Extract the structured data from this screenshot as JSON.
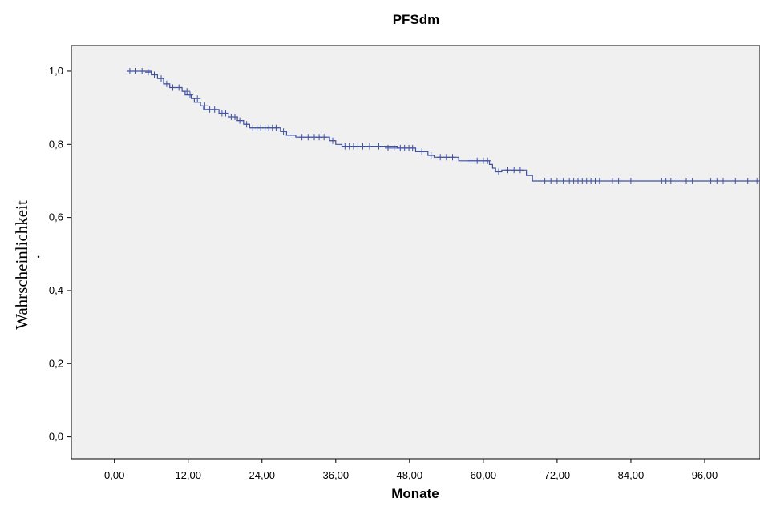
{
  "chart_data": {
    "type": "line",
    "title": "PFSdm",
    "xlabel": "Monate",
    "ylabel": "Wahrscheinlichkeit",
    "ylabel_mark": ".",
    "xlim": [
      -7,
      105
    ],
    "ylim": [
      -0.06,
      1.07
    ],
    "x_ticks": [
      0,
      12,
      24,
      36,
      48,
      60,
      72,
      84,
      96
    ],
    "x_tick_labels": [
      "0,00",
      "12,00",
      "24,00",
      "36,00",
      "48,00",
      "60,00",
      "72,00",
      "84,00",
      "96,00"
    ],
    "y_ticks": [
      0,
      0.2,
      0.4,
      0.6,
      0.8,
      1.0
    ],
    "y_tick_labels": [
      "0,0",
      "0,2",
      "0,4",
      "0,6",
      "0,8",
      "1,0"
    ],
    "grid": false,
    "colors": {
      "plot_bg": "#f0f0f0",
      "line": "#3f51a4"
    },
    "series": [
      {
        "step": [
          [
            2,
            1.0
          ],
          [
            6,
            1.0
          ],
          [
            6,
            0.99
          ],
          [
            7,
            0.99
          ],
          [
            7,
            0.98
          ],
          [
            8,
            0.98
          ],
          [
            8,
            0.965
          ],
          [
            9,
            0.965
          ],
          [
            9,
            0.955
          ],
          [
            11,
            0.955
          ],
          [
            11,
            0.945
          ],
          [
            11.5,
            0.945
          ],
          [
            11.5,
            0.935
          ],
          [
            12.5,
            0.935
          ],
          [
            12.5,
            0.925
          ],
          [
            13,
            0.925
          ],
          [
            13,
            0.915
          ],
          [
            14,
            0.915
          ],
          [
            14,
            0.905
          ],
          [
            14.5,
            0.905
          ],
          [
            14.5,
            0.895
          ],
          [
            17,
            0.895
          ],
          [
            17,
            0.885
          ],
          [
            18.5,
            0.885
          ],
          [
            18.5,
            0.875
          ],
          [
            20,
            0.875
          ],
          [
            20,
            0.865
          ],
          [
            21,
            0.865
          ],
          [
            21,
            0.855
          ],
          [
            22,
            0.855
          ],
          [
            22,
            0.845
          ],
          [
            27,
            0.845
          ],
          [
            27,
            0.835
          ],
          [
            28,
            0.835
          ],
          [
            28,
            0.825
          ],
          [
            29.5,
            0.825
          ],
          [
            29.5,
            0.82
          ],
          [
            35,
            0.82
          ],
          [
            35,
            0.81
          ],
          [
            36,
            0.81
          ],
          [
            36,
            0.8
          ],
          [
            37,
            0.8
          ],
          [
            37,
            0.795
          ],
          [
            46,
            0.795
          ],
          [
            46,
            0.79
          ],
          [
            49,
            0.79
          ],
          [
            49,
            0.78
          ],
          [
            51,
            0.78
          ],
          [
            51,
            0.77
          ],
          [
            52,
            0.77
          ],
          [
            52,
            0.765
          ],
          [
            56,
            0.765
          ],
          [
            56,
            0.755
          ],
          [
            61,
            0.755
          ],
          [
            61,
            0.745
          ],
          [
            61.5,
            0.745
          ],
          [
            61.5,
            0.735
          ],
          [
            62,
            0.735
          ],
          [
            62,
            0.725
          ],
          [
            63,
            0.725
          ],
          [
            63,
            0.73
          ],
          [
            67,
            0.73
          ],
          [
            67,
            0.715
          ],
          [
            68,
            0.715
          ],
          [
            68,
            0.7
          ],
          [
            105,
            0.7
          ]
        ],
        "censored": [
          [
            2.5,
            1.0
          ],
          [
            3.5,
            1.0
          ],
          [
            4.5,
            1.0
          ],
          [
            5.5,
            0.997
          ],
          [
            6.5,
            0.99
          ],
          [
            7.6,
            0.98
          ],
          [
            8.5,
            0.965
          ],
          [
            9.5,
            0.955
          ],
          [
            10.5,
            0.955
          ],
          [
            11.8,
            0.945
          ],
          [
            12.3,
            0.935
          ],
          [
            13.5,
            0.925
          ],
          [
            14.7,
            0.905
          ],
          [
            15.5,
            0.895
          ],
          [
            16.3,
            0.895
          ],
          [
            17.5,
            0.885
          ],
          [
            18.1,
            0.885
          ],
          [
            19,
            0.875
          ],
          [
            19.6,
            0.875
          ],
          [
            20.4,
            0.865
          ],
          [
            21.5,
            0.855
          ],
          [
            22.5,
            0.845
          ],
          [
            23.2,
            0.845
          ],
          [
            23.8,
            0.845
          ],
          [
            24.5,
            0.845
          ],
          [
            25.1,
            0.845
          ],
          [
            25.7,
            0.845
          ],
          [
            26.3,
            0.845
          ],
          [
            27.5,
            0.835
          ],
          [
            28.4,
            0.825
          ],
          [
            30.5,
            0.82
          ],
          [
            31.5,
            0.82
          ],
          [
            32.5,
            0.82
          ],
          [
            33.3,
            0.82
          ],
          [
            34.1,
            0.82
          ],
          [
            35.5,
            0.81
          ],
          [
            37.5,
            0.795
          ],
          [
            38.2,
            0.795
          ],
          [
            38.9,
            0.795
          ],
          [
            39.6,
            0.795
          ],
          [
            40.4,
            0.795
          ],
          [
            41.5,
            0.795
          ],
          [
            43,
            0.795
          ],
          [
            44.5,
            0.79
          ],
          [
            45.5,
            0.79
          ],
          [
            46.5,
            0.79
          ],
          [
            47.2,
            0.79
          ],
          [
            47.9,
            0.79
          ],
          [
            48.5,
            0.79
          ],
          [
            50,
            0.78
          ],
          [
            51.5,
            0.77
          ],
          [
            53,
            0.765
          ],
          [
            54,
            0.765
          ],
          [
            55,
            0.765
          ],
          [
            58,
            0.755
          ],
          [
            59,
            0.755
          ],
          [
            60,
            0.755
          ],
          [
            60.7,
            0.755
          ],
          [
            62.5,
            0.725
          ],
          [
            64,
            0.73
          ],
          [
            65,
            0.73
          ],
          [
            66,
            0.73
          ],
          [
            70,
            0.7
          ],
          [
            71,
            0.7
          ],
          [
            72,
            0.7
          ],
          [
            73,
            0.7
          ],
          [
            74,
            0.7
          ],
          [
            74.7,
            0.7
          ],
          [
            75.4,
            0.7
          ],
          [
            76.1,
            0.7
          ],
          [
            76.8,
            0.7
          ],
          [
            77.5,
            0.7
          ],
          [
            78.2,
            0.7
          ],
          [
            78.9,
            0.7
          ],
          [
            81,
            0.7
          ],
          [
            82,
            0.7
          ],
          [
            84,
            0.7
          ],
          [
            89,
            0.7
          ],
          [
            89.7,
            0.7
          ],
          [
            90.5,
            0.7
          ],
          [
            91.5,
            0.7
          ],
          [
            93,
            0.7
          ],
          [
            94,
            0.7
          ],
          [
            97,
            0.7
          ],
          [
            98,
            0.7
          ],
          [
            99,
            0.7
          ],
          [
            101,
            0.7
          ],
          [
            103,
            0.7
          ],
          [
            104.5,
            0.7
          ]
        ]
      }
    ]
  }
}
